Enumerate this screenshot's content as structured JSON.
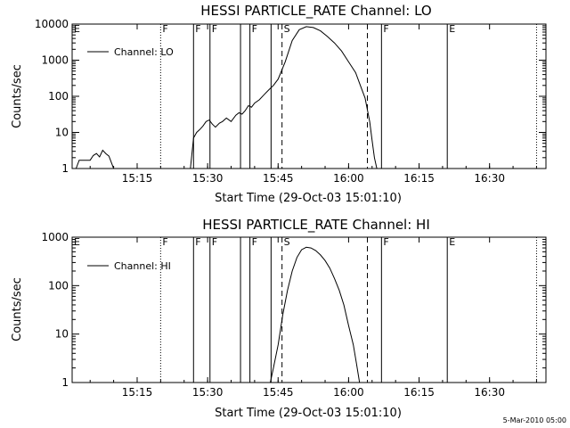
{
  "footer": "5-Mar-2010 05:00",
  "chart_data": [
    {
      "type": "line",
      "title": "HESSI PARTICLE_RATE Channel: LO",
      "xlabel": "Start Time (29-Oct-03 15:01:10)",
      "ylabel": "Counts/sec",
      "yscale": "log",
      "xlim": [
        "15:01:10",
        "16:42:00"
      ],
      "ylim": [
        1,
        10000
      ],
      "xticks": [
        "15:15",
        "15:30",
        "15:45",
        "16:00",
        "16:15",
        "16:30"
      ],
      "yticks": [
        "1",
        "10",
        "100",
        "1000",
        "10000"
      ],
      "legend": {
        "label": "Channel: LO",
        "placement": "top-left"
      },
      "markers": [
        {
          "label": "E",
          "time": "15:01:10",
          "style": "dotted"
        },
        {
          "label": "F",
          "time": "15:20:00",
          "style": "dotted"
        },
        {
          "label": "F",
          "time": "15:27:00",
          "style": "solid"
        },
        {
          "label": "F",
          "time": "15:30:30",
          "style": "solid"
        },
        {
          "label": "",
          "time": "15:37:00",
          "style": "solid"
        },
        {
          "label": "F",
          "time": "15:39:00",
          "style": "solid"
        },
        {
          "label": "",
          "time": "15:43:30",
          "style": "solid"
        },
        {
          "label": "S",
          "time": "15:45:50",
          "style": "dashed"
        },
        {
          "label": "",
          "time": "16:04:00",
          "style": "dashed"
        },
        {
          "label": "F",
          "time": "16:07:00",
          "style": "solid"
        },
        {
          "label": "E",
          "time": "16:21:00",
          "style": "solid"
        },
        {
          "label": "",
          "time": "16:40:00",
          "style": "dotted"
        }
      ],
      "series": [
        {
          "name": "Channel: LO",
          "segments": [
            {
              "x": [
                "15:01:10",
                "15:02:00",
                "15:02:40",
                "15:03:30",
                "15:04:20",
                "15:05:00",
                "15:05:40",
                "15:06:20",
                "15:07:00",
                "15:07:40",
                "15:08:20",
                "15:09:00",
                "15:10:00",
                "15:11:00",
                "15:11:30"
              ],
              "y": [
                1,
                1,
                1.7,
                1.7,
                1.7,
                1.7,
                2.3,
                2.6,
                2.1,
                3.2,
                2.6,
                2.2,
                1,
                1,
                1
              ]
            },
            {
              "x": [
                "15:26:20",
                "15:27:00",
                "15:27:40",
                "15:28:20",
                "15:29:00",
                "15:29:40",
                "15:30:20",
                "15:31:00",
                "15:31:40",
                "15:32:30",
                "15:33:10",
                "15:34:00",
                "15:35:00",
                "15:36:00",
                "15:36:40",
                "15:37:20",
                "15:38:00",
                "15:38:40",
                "15:39:20",
                "15:40:00",
                "15:41:00",
                "15:42:00",
                "15:43:00",
                "15:44:00",
                "15:45:00",
                "15:46:30",
                "15:48:00",
                "15:49:30",
                "15:51:00",
                "15:52:30",
                "15:54:00",
                "15:55:30",
                "15:57:00",
                "15:58:30",
                "16:00:00",
                "16:01:30",
                "16:02:30",
                "16:03:30",
                "16:04:30",
                "16:05:00",
                "16:05:30",
                "16:06:00"
              ],
              "y": [
                1,
                7,
                10,
                12,
                15,
                20,
                22,
                17,
                14,
                18,
                20,
                25,
                20,
                30,
                35,
                32,
                40,
                55,
                50,
                65,
                80,
                110,
                150,
                200,
                300,
                900,
                3500,
                7000,
                8500,
                8000,
                6500,
                4500,
                3000,
                1800,
                900,
                450,
                200,
                90,
                20,
                6,
                2,
                1
              ]
            }
          ]
        }
      ]
    },
    {
      "type": "line",
      "title": "HESSI PARTICLE_RATE Channel: HI",
      "xlabel": "Start Time (29-Oct-03 15:01:10)",
      "ylabel": "Counts/sec",
      "yscale": "log",
      "xlim": [
        "15:01:10",
        "16:42:00"
      ],
      "ylim": [
        1,
        1000
      ],
      "xticks": [
        "15:15",
        "15:30",
        "15:45",
        "16:00",
        "16:15",
        "16:30"
      ],
      "yticks": [
        "1",
        "10",
        "100",
        "1000"
      ],
      "legend": {
        "label": "Channel: HI",
        "placement": "top-left"
      },
      "markers": [
        {
          "label": "E",
          "time": "15:01:10",
          "style": "dotted"
        },
        {
          "label": "F",
          "time": "15:20:00",
          "style": "dotted"
        },
        {
          "label": "F",
          "time": "15:27:00",
          "style": "solid"
        },
        {
          "label": "F",
          "time": "15:30:30",
          "style": "solid"
        },
        {
          "label": "",
          "time": "15:37:00",
          "style": "solid"
        },
        {
          "label": "F",
          "time": "15:39:00",
          "style": "solid"
        },
        {
          "label": "",
          "time": "15:43:30",
          "style": "solid"
        },
        {
          "label": "S",
          "time": "15:45:50",
          "style": "dashed"
        },
        {
          "label": "",
          "time": "16:04:00",
          "style": "dashed"
        },
        {
          "label": "F",
          "time": "16:07:00",
          "style": "solid"
        },
        {
          "label": "E",
          "time": "16:21:00",
          "style": "solid"
        },
        {
          "label": "",
          "time": "16:40:00",
          "style": "dotted"
        }
      ],
      "series": [
        {
          "name": "Channel: HI",
          "segments": [
            {
              "x": [
                "15:43:20",
                "15:44:00",
                "15:45:00",
                "15:46:00",
                "15:47:00",
                "15:48:00",
                "15:49:00",
                "15:50:00",
                "15:51:00",
                "15:52:00",
                "15:53:00",
                "15:54:00",
                "15:55:00",
                "15:56:00",
                "15:57:00",
                "15:58:00",
                "15:59:00",
                "16:00:00",
                "16:01:00",
                "16:01:40",
                "16:02:20"
              ],
              "y": [
                1,
                2,
                6,
                25,
                80,
                200,
                380,
                550,
                620,
                600,
                530,
                430,
                330,
                230,
                140,
                80,
                40,
                15,
                6,
                2.5,
                1
              ]
            }
          ]
        }
      ]
    }
  ]
}
